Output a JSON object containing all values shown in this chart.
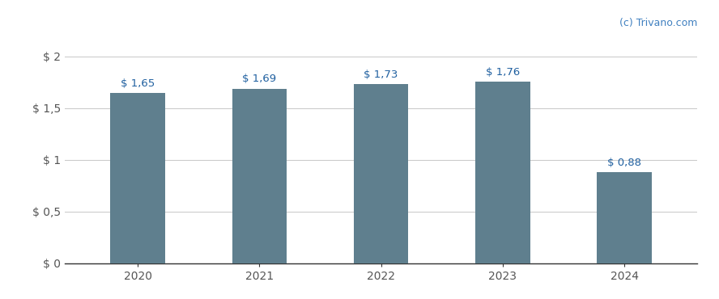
{
  "categories": [
    "2020",
    "2021",
    "2022",
    "2023",
    "2024"
  ],
  "values": [
    1.65,
    1.69,
    1.73,
    1.76,
    0.88
  ],
  "bar_color": "#5f7f8e",
  "bar_labels": [
    "$ 1,65",
    "$ 1,69",
    "$ 1,73",
    "$ 1,76",
    "$ 0,88"
  ],
  "yticks": [
    0,
    0.5,
    1.0,
    1.5,
    2.0
  ],
  "ytick_labels": [
    "$ 0",
    "$ 0,5",
    "$ 1",
    "$ 1,5",
    "$ 2"
  ],
  "ylim": [
    0,
    2.2
  ],
  "background_color": "#ffffff",
  "grid_color": "#cccccc",
  "bar_label_color_dollar": "#e07820",
  "bar_label_color_num": "#2060a0",
  "tick_color": "#555555",
  "watermark_text": "(c) Trivano.com",
  "watermark_color": "#4080c0",
  "bar_width": 0.45
}
